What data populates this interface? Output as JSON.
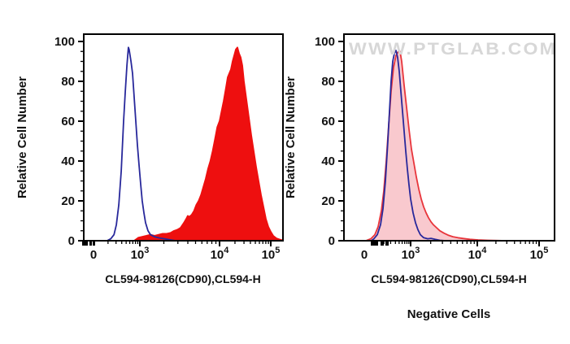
{
  "figure": {
    "background": "#ffffff",
    "watermark_text": "WWW.PTGLAB.COM",
    "watermark_color": "#d7d7d7"
  },
  "chart_data": [
    {
      "type": "area",
      "subtype": "flow-cytometry-histogram-overlay",
      "title": "",
      "xlabel": "CL594-98126(CD90),CL594-H",
      "ylabel": "Relative Cell Number",
      "caption": "",
      "x_scale": "biexponential log (compressed linear region near 0, log decades to 10^5)",
      "x_tick_labels": [
        "0",
        "10^3",
        "10^4",
        "10^5"
      ],
      "x_tick_values": [
        0,
        1000,
        10000,
        100000
      ],
      "ylim": [
        0,
        100
      ],
      "y_ticks": [
        0,
        20,
        40,
        60,
        80,
        100
      ],
      "y_minor_step": 5,
      "grid": false,
      "legend": "none",
      "series": [
        {
          "name": "red-filled-histogram",
          "line_color": "#ee0f0f",
          "fill_color": "#ee0f0f",
          "peak": {
            "x": 22000,
            "y": 97
          },
          "points": [
            [
              750,
              0
            ],
            [
              920,
              1.5
            ],
            [
              1070,
              2
            ],
            [
              1210,
              2.5
            ],
            [
              1360,
              3
            ],
            [
              1530,
              2.5
            ],
            [
              1720,
              3
            ],
            [
              1930,
              3.5
            ],
            [
              2170,
              3.5
            ],
            [
              2440,
              4
            ],
            [
              2690,
              5
            ],
            [
              2950,
              5.5
            ],
            [
              3240,
              6.5
            ],
            [
              3570,
              9
            ],
            [
              3820,
              11
            ],
            [
              3990,
              12.5
            ],
            [
              4180,
              12
            ],
            [
              4470,
              13
            ],
            [
              4780,
              15
            ],
            [
              5110,
              18
            ],
            [
              5470,
              20
            ],
            [
              5850,
              23
            ],
            [
              6260,
              27
            ],
            [
              6690,
              31
            ],
            [
              7160,
              36
            ],
            [
              7660,
              40
            ],
            [
              8190,
              45
            ],
            [
              8760,
              51
            ],
            [
              9370,
              57
            ],
            [
              10000,
              60
            ],
            [
              10760,
              64
            ],
            [
              12000,
              70
            ],
            [
              13400,
              77
            ],
            [
              14400,
              82
            ],
            [
              15500,
              84
            ],
            [
              16700,
              86
            ],
            [
              17950,
              90
            ],
            [
              19300,
              93
            ],
            [
              20750,
              96
            ],
            [
              22350,
              97
            ],
            [
              24050,
              94
            ],
            [
              25900,
              92
            ],
            [
              27800,
              88
            ],
            [
              29900,
              80
            ],
            [
              33400,
              71
            ],
            [
              37250,
              62
            ],
            [
              41600,
              53
            ],
            [
              46450,
              45
            ],
            [
              51800,
              37
            ],
            [
              57800,
              30
            ],
            [
              64550,
              23
            ],
            [
              71900,
              17
            ],
            [
              80350,
              11
            ],
            [
              89500,
              7
            ],
            [
              100000,
              4.5
            ],
            [
              111600,
              2.5
            ],
            [
              129000,
              1.2
            ],
            [
              149500,
              0.6
            ],
            [
              173000,
              0.2
            ]
          ]
        },
        {
          "name": "blue-open-histogram",
          "line_color": "#28289b",
          "fill_color": "none",
          "peak": {
            "x": 560,
            "y": 97
          },
          "points": [
            [
              190,
              0
            ],
            [
              230,
              1
            ],
            [
              270,
              3
            ],
            [
              305,
              8
            ],
            [
              345,
              18
            ],
            [
              390,
              35
            ],
            [
              440,
              60
            ],
            [
              480,
              75
            ],
            [
              520,
              88
            ],
            [
              560,
              97
            ],
            [
              580,
              96
            ],
            [
              640,
              90
            ],
            [
              690,
              84
            ],
            [
              750,
              72
            ],
            [
              815,
              60
            ],
            [
              885,
              48
            ],
            [
              960,
              38
            ],
            [
              1025,
              28
            ],
            [
              1070,
              20
            ],
            [
              1125,
              14
            ],
            [
              1180,
              9
            ],
            [
              1265,
              5
            ],
            [
              1360,
              3
            ],
            [
              1530,
              2
            ],
            [
              1760,
              1.4
            ],
            [
              2070,
              0.9
            ],
            [
              2440,
              0.4
            ],
            [
              2810,
              0
            ]
          ]
        }
      ]
    },
    {
      "type": "area",
      "subtype": "flow-cytometry-histogram-overlay",
      "title": "",
      "xlabel": "CL594-98126(CD90),CL594-H",
      "ylabel": "Relative Cell Number",
      "caption": "Negative Cells",
      "watermark": "WWW.PTGLAB.COM",
      "x_scale": "biexponential log (compressed linear region near 0, log decades to 10^5)",
      "x_tick_labels": [
        "0",
        "10^3",
        "10^4",
        "10^5"
      ],
      "x_tick_values": [
        0,
        1000,
        10000,
        100000
      ],
      "ylim": [
        0,
        100
      ],
      "y_ticks": [
        0,
        20,
        40,
        60,
        80,
        100
      ],
      "y_minor_step": 5,
      "grid": false,
      "legend": "none",
      "series": [
        {
          "name": "red-outline-pink-fill-histogram",
          "line_color": "#e8353b",
          "fill_color": "#f9c9ce",
          "peak": {
            "x": 500,
            "y": 95
          },
          "points": [
            [
              68,
              0
            ],
            [
              91,
              1
            ],
            [
              116,
              3
            ],
            [
              141,
              7
            ],
            [
              171,
              15
            ],
            [
              199,
              25
            ],
            [
              230,
              40
            ],
            [
              266,
              58
            ],
            [
              309,
              75
            ],
            [
              357,
              87
            ],
            [
              414,
              93
            ],
            [
              480,
              95
            ],
            [
              529,
              95
            ],
            [
              583,
              90
            ],
            [
              676,
              78
            ],
            [
              783,
              67
            ],
            [
              906,
              56
            ],
            [
              1028,
              46
            ],
            [
              1119,
              39
            ],
            [
              1217,
              32
            ],
            [
              1324,
              26
            ],
            [
              1441,
              21
            ],
            [
              1567,
              17
            ],
            [
              1705,
              14
            ],
            [
              1854,
              11.5
            ],
            [
              2018,
              9.5
            ],
            [
              2195,
              8
            ],
            [
              2455,
              6.5
            ],
            [
              2748,
              5
            ],
            [
              3162,
              3.8
            ],
            [
              3640,
              2.8
            ],
            [
              4305,
              2
            ],
            [
              5093,
              1.5
            ],
            [
              6209,
              1.1
            ],
            [
              7762,
              0.7
            ],
            [
              10310,
              0.4
            ],
            [
              14830,
              0.2
            ],
            [
              21330,
              0.1
            ],
            [
              28900,
              0
            ]
          ]
        },
        {
          "name": "blue-open-histogram",
          "line_color": "#28289b",
          "fill_color": "none",
          "peak": {
            "x": 414,
            "y": 95.5
          },
          "points": [
            [
              93,
              0
            ],
            [
              110,
              1
            ],
            [
              134,
              3
            ],
            [
              163,
              8
            ],
            [
              189,
              16
            ],
            [
              219,
              30
            ],
            [
              254,
              50
            ],
            [
              280,
              65
            ],
            [
              309,
              80
            ],
            [
              340,
              90
            ],
            [
              375,
              94
            ],
            [
              414,
              95.5
            ],
            [
              457,
              92
            ],
            [
              504,
              85
            ],
            [
              556,
              75
            ],
            [
              612,
              65
            ],
            [
              676,
              55
            ],
            [
              745,
              45
            ],
            [
              822,
              36
            ],
            [
              906,
              28
            ],
            [
              1000,
              21
            ],
            [
              1088,
              14
            ],
            [
              1183,
              9
            ],
            [
              1288,
              5.5
            ],
            [
              1400,
              3
            ],
            [
              1567,
              1.5
            ],
            [
              1803,
              1
            ],
            [
              2018,
              1.2
            ],
            [
              2323,
              0.7
            ],
            [
              2748,
              0.2
            ],
            [
              3343,
              0
            ]
          ]
        }
      ]
    }
  ]
}
